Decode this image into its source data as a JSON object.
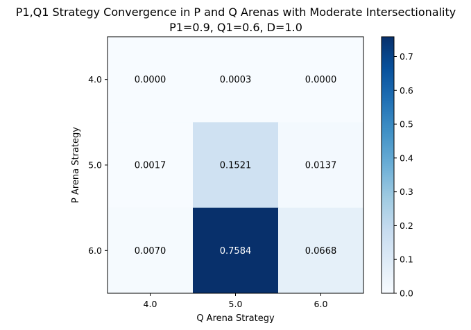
{
  "chart_data": {
    "type": "heatmap",
    "title": "P1,Q1 Strategy Convergence in P and Q Arenas with Moderate Intersectionality",
    "subtitle": "P1=0.9, Q1=0.6, D=1.0",
    "xlabel": "Q Arena Strategy",
    "ylabel": "P Arena Strategy",
    "x_categories": [
      "4.0",
      "5.0",
      "6.0"
    ],
    "y_categories": [
      "4.0",
      "5.0",
      "6.0"
    ],
    "values": [
      [
        0.0,
        0.0003,
        0.0
      ],
      [
        0.0017,
        0.1521,
        0.0137
      ],
      [
        0.007,
        0.7584,
        0.0668
      ]
    ],
    "value_labels": [
      [
        "0.0000",
        "0.0003",
        "0.0000"
      ],
      [
        "0.0017",
        "0.1521",
        "0.0137"
      ],
      [
        "0.0070",
        "0.7584",
        "0.0668"
      ]
    ],
    "colormap": "Blues",
    "colorbar": {
      "range": [
        0,
        0.7584
      ],
      "ticks": [
        0.0,
        0.1,
        0.2,
        0.3,
        0.4,
        0.5,
        0.6,
        0.7
      ],
      "tick_labels": [
        "0.0",
        "0.1",
        "0.2",
        "0.3",
        "0.4",
        "0.5",
        "0.6",
        "0.7"
      ]
    },
    "grid": false
  }
}
